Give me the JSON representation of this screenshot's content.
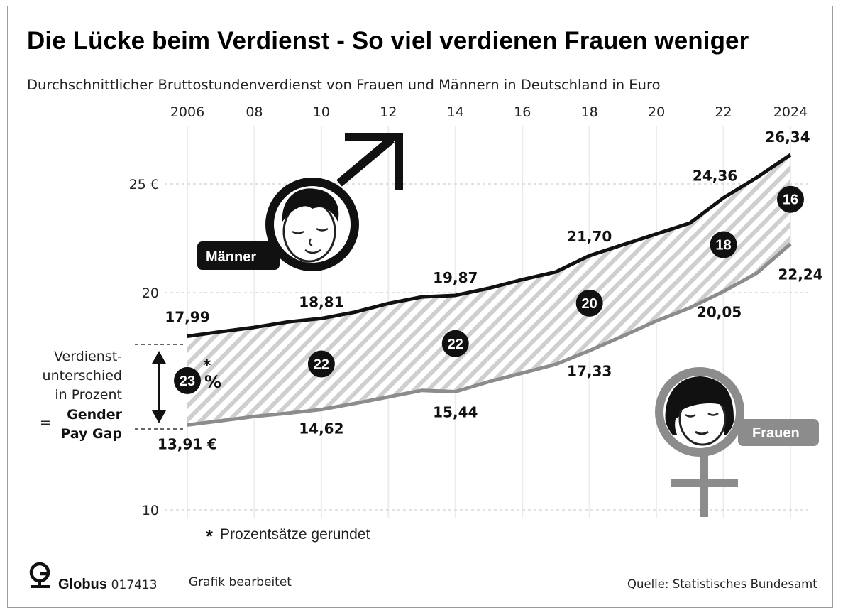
{
  "header": {
    "title": "Die Lücke beim Verdienst - So viel verdienen Frauen weniger",
    "subtitle": "Durchschnittlicher Bruttostundenverdienst von Frauen und Männern in Deutschland in Euro"
  },
  "chart_data": {
    "type": "line",
    "title": "Die Lücke beim Verdienst - So viel verdienen Frauen weniger",
    "subtitle": "Durchschnittlicher Bruttostundenverdienst von Frauen und Männern in Deutschland in Euro",
    "x_tick_labels": [
      "2006",
      "08",
      "10",
      "12",
      "14",
      "16",
      "18",
      "20",
      "22",
      "2024"
    ],
    "x_tick_values": [
      2006,
      2008,
      2010,
      2012,
      2014,
      2016,
      2018,
      2020,
      2022,
      2024
    ],
    "y_tick_labels": [
      "10",
      "20",
      "25 €"
    ],
    "y_tick_values": [
      10,
      20,
      25
    ],
    "ylim": [
      10,
      27
    ],
    "xlim": [
      2006,
      2024
    ],
    "grid": true,
    "series": [
      {
        "name": "Männer",
        "color": "#111111",
        "x": [
          2006,
          2007,
          2008,
          2009,
          2010,
          2011,
          2012,
          2013,
          2014,
          2015,
          2016,
          2017,
          2018,
          2019,
          2020,
          2021,
          2022,
          2023,
          2024
        ],
        "y": [
          17.99,
          18.2,
          18.4,
          18.65,
          18.81,
          19.1,
          19.5,
          19.8,
          19.87,
          20.2,
          20.6,
          20.95,
          21.7,
          22.2,
          22.7,
          23.2,
          24.36,
          25.3,
          26.34
        ]
      },
      {
        "name": "Frauen",
        "color": "#8c8c8c",
        "x": [
          2006,
          2007,
          2008,
          2009,
          2010,
          2011,
          2012,
          2013,
          2014,
          2015,
          2016,
          2017,
          2018,
          2019,
          2020,
          2021,
          2022,
          2023,
          2024
        ],
        "y": [
          13.91,
          14.1,
          14.3,
          14.45,
          14.62,
          14.9,
          15.2,
          15.5,
          15.44,
          15.9,
          16.3,
          16.7,
          17.33,
          18.0,
          18.7,
          19.3,
          20.05,
          20.9,
          22.24
        ]
      }
    ],
    "value_labels": [
      {
        "series": "Männer",
        "x": 2006,
        "text": "17,99"
      },
      {
        "series": "Männer",
        "x": 2010,
        "text": "18,81"
      },
      {
        "series": "Männer",
        "x": 2014,
        "text": "19,87"
      },
      {
        "series": "Männer",
        "x": 2018,
        "text": "21,70"
      },
      {
        "series": "Männer",
        "x": 2022,
        "text": "24,36"
      },
      {
        "series": "Männer",
        "x": 2024,
        "text": "26,34"
      },
      {
        "series": "Frauen",
        "x": 2006,
        "text": "13,91 €"
      },
      {
        "series": "Frauen",
        "x": 2010,
        "text": "14,62"
      },
      {
        "series": "Frauen",
        "x": 2014,
        "text": "15,44"
      },
      {
        "series": "Frauen",
        "x": 2018,
        "text": "17,33"
      },
      {
        "series": "Frauen",
        "x": 2022,
        "text": "20,05"
      },
      {
        "series": "Frauen",
        "x": 2024,
        "text": "22,24"
      }
    ],
    "gap_percent": [
      {
        "x": 2006,
        "value": 23,
        "label": "23",
        "suffix": "%",
        "asterisk": "*"
      },
      {
        "x": 2010,
        "value": 22,
        "label": "22"
      },
      {
        "x": 2014,
        "value": 22,
        "label": "22"
      },
      {
        "x": 2018,
        "value": 20,
        "label": "20"
      },
      {
        "x": 2022,
        "value": 18,
        "label": "18"
      },
      {
        "x": 2024,
        "value": 16,
        "label": "16"
      }
    ],
    "gap_explainer": {
      "lines": [
        "Verdienst-",
        "unterschied",
        "in Prozent"
      ],
      "equals": "=",
      "bold_lines": [
        "Gender",
        "Pay Gap"
      ]
    },
    "footnote": "Prozentsätze gerundet",
    "footnote_marker": "*"
  },
  "badges": {
    "men": "Männer",
    "women": "Frauen"
  },
  "footer": {
    "logo_brand": "Globus",
    "logo_number": "017413",
    "edited": "Grafik bearbeitet",
    "source": "Quelle: Statistisches Bundesamt"
  }
}
